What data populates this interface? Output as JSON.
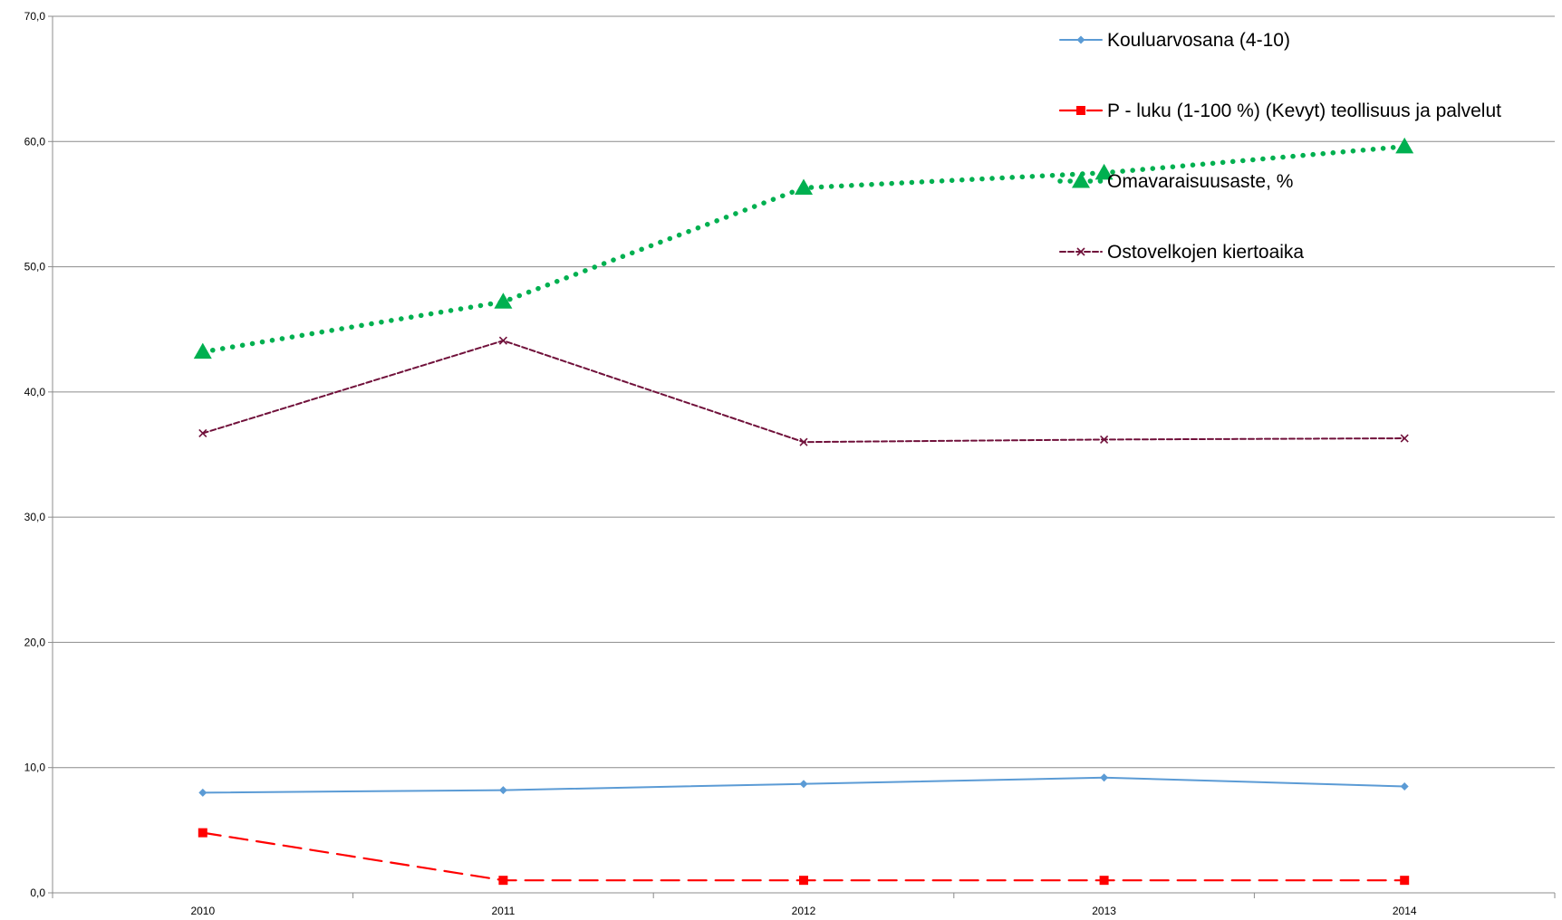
{
  "chart_data": {
    "type": "line",
    "categories": [
      "2010",
      "2011",
      "2012",
      "2013",
      "2014"
    ],
    "ylim": [
      0,
      70
    ],
    "yticks": [
      0,
      10,
      20,
      30,
      40,
      50,
      60,
      70
    ],
    "ytick_labels": [
      "0,0",
      "10,0",
      "20,0",
      "30,0",
      "40,0",
      "50,0",
      "60,0",
      "70,0"
    ],
    "grid": true,
    "legend_position": "top-right (inside plot)",
    "series": [
      {
        "name": "Kouluarvosana (4-10)",
        "values": [
          8.0,
          8.2,
          8.7,
          9.2,
          8.5
        ],
        "color": "#5B9BD5",
        "marker": "diamond",
        "dash": "solid"
      },
      {
        "name": "P - luku (1-100 %)  (Kevyt) teollisuus ja palvelut",
        "values": [
          4.8,
          1.0,
          1.0,
          1.0,
          1.0
        ],
        "color": "#FF0000",
        "marker": "square",
        "dash": "dashed"
      },
      {
        "name": "Omavaraisuusaste, %",
        "values": [
          43.2,
          47.2,
          56.3,
          57.5,
          59.6
        ],
        "color": "#00B050",
        "marker": "triangle",
        "dash": "dotted"
      },
      {
        "name": "Ostovelkojen kiertoaika",
        "values": [
          36.7,
          44.1,
          36.0,
          36.2,
          36.3
        ],
        "color": "#70103A",
        "marker": "x",
        "dash": "short-dash"
      }
    ]
  }
}
